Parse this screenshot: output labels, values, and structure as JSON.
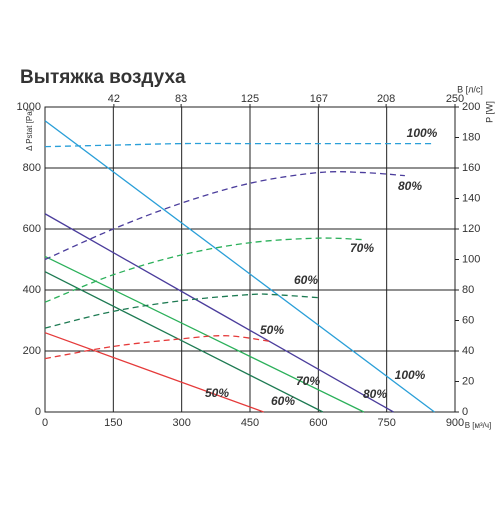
{
  "chart_data": {
    "type": "line",
    "title": "Вытяжка воздуха",
    "ylabel": "Δ Pstat [Pa]",
    "y2label": "P [W]",
    "xlabel": "B [м³/ч]",
    "x2label": "B [л/с]",
    "xlim": [
      0,
      900
    ],
    "xticks": [
      0,
      150,
      300,
      450,
      600,
      750,
      900
    ],
    "x2lim": [
      0,
      250
    ],
    "x2ticks": [
      42,
      83,
      125,
      167,
      208,
      250
    ],
    "ylim": [
      0,
      1000
    ],
    "yticks": [
      0,
      200,
      400,
      600,
      800,
      1000
    ],
    "y2lim": [
      0,
      200
    ],
    "y2ticks": [
      0,
      20,
      40,
      60,
      80,
      100,
      120,
      140,
      160,
      180,
      200
    ],
    "grid": true,
    "series": [
      {
        "name": "100%",
        "color": "#2a9fd8",
        "x": [
          0,
          855
        ],
        "values": [
          955,
          0
        ]
      },
      {
        "name": "80%",
        "color": "#4b3d9c",
        "x": [
          0,
          765
        ],
        "values": [
          650,
          0
        ]
      },
      {
        "name": "70%",
        "color": "#2bb05a",
        "x": [
          0,
          700
        ],
        "values": [
          510,
          0
        ]
      },
      {
        "name": "60%",
        "color": "#1d7a52",
        "x": [
          0,
          610
        ],
        "values": [
          460,
          0
        ]
      },
      {
        "name": "50%",
        "color": "#e53a3a",
        "x": [
          0,
          480
        ],
        "values": [
          260,
          0
        ]
      },
      {
        "name": "100%",
        "color": "#2a9fd8",
        "axis": "y2",
        "dashed": true,
        "x": [
          0,
          150,
          300,
          450,
          600,
          750,
          850
        ],
        "values": [
          174,
          175,
          176,
          176,
          176,
          176,
          176
        ]
      },
      {
        "name": "80%",
        "color": "#4b3d9c",
        "axis": "y2",
        "dashed": true,
        "x": [
          0,
          150,
          300,
          450,
          600,
          700,
          790
        ],
        "values": [
          100,
          120,
          137,
          150,
          157,
          157,
          155
        ]
      },
      {
        "name": "70%",
        "color": "#2bb05a",
        "axis": "y2",
        "dashed": true,
        "x": [
          0,
          150,
          300,
          450,
          600,
          700
        ],
        "values": [
          72,
          90,
          103,
          111,
          114,
          113
        ]
      },
      {
        "name": "60%",
        "color": "#1d7a52",
        "axis": "y2",
        "dashed": true,
        "x": [
          0,
          150,
          300,
          450,
          500,
          600
        ],
        "values": [
          55,
          66,
          73,
          77,
          77,
          75
        ]
      },
      {
        "name": "50%",
        "color": "#e53a3a",
        "axis": "y2",
        "dashed": true,
        "x": [
          0,
          150,
          300,
          400,
          500
        ],
        "values": [
          35,
          43,
          48,
          50,
          46
        ]
      }
    ]
  }
}
